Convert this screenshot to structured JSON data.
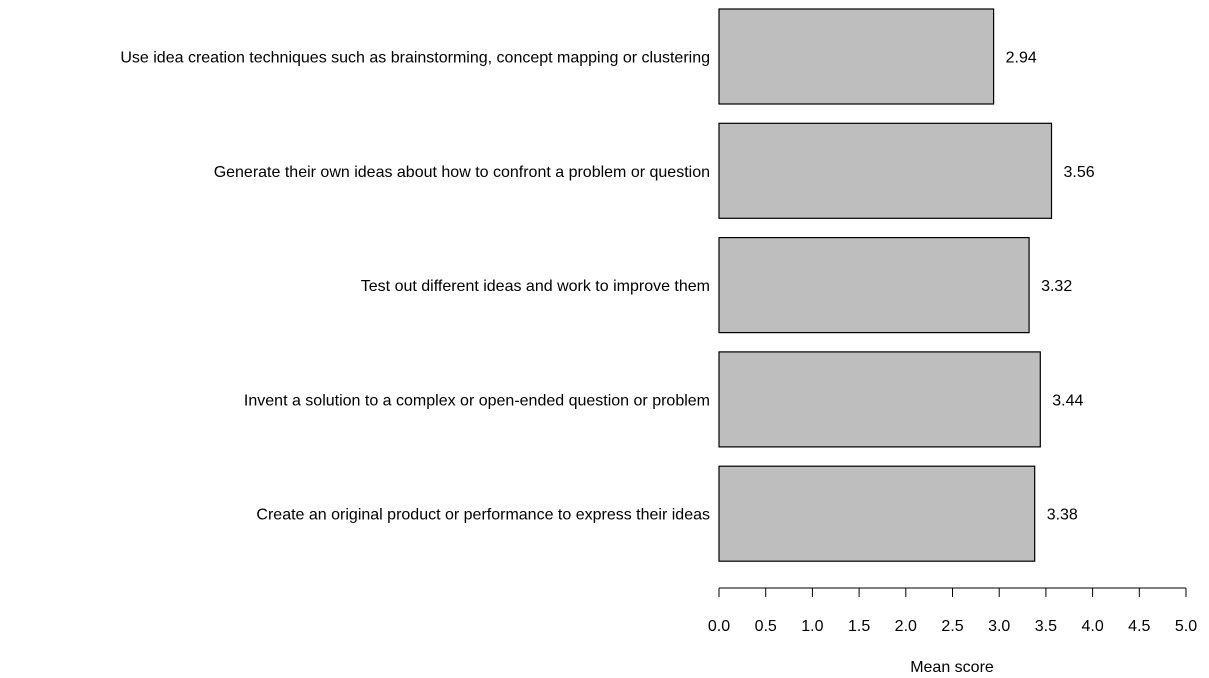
{
  "chart_data": {
    "type": "bar",
    "orientation": "horizontal",
    "categories": [
      "Use idea creation techniques such as brainstorming, concept mapping or clustering",
      "Generate their own ideas about how to confront a problem or question",
      "Test out different ideas and work to improve them",
      "Invent a solution to a complex or open-ended question or problem",
      "Create an original product or performance to express their ideas"
    ],
    "values": [
      2.94,
      3.56,
      3.32,
      3.44,
      3.38
    ],
    "value_labels": [
      "2.94",
      "3.56",
      "3.32",
      "3.44",
      "3.38"
    ],
    "title": "",
    "xlabel": "Mean score",
    "ylabel": "",
    "xlim": [
      0,
      5
    ],
    "x_ticks": [
      0,
      0.5,
      1,
      1.5,
      2,
      2.5,
      3,
      3.5,
      4,
      4.5,
      5
    ],
    "x_tick_labels": [
      "0.0",
      "0.5",
      "1.0",
      "1.5",
      "2.0",
      "2.5",
      "3.0",
      "3.5",
      "4.0",
      "4.5",
      "5.0"
    ],
    "grid": false,
    "legend": "none",
    "bar_color": "#bebebe",
    "bar_edge_color": "#000000"
  }
}
